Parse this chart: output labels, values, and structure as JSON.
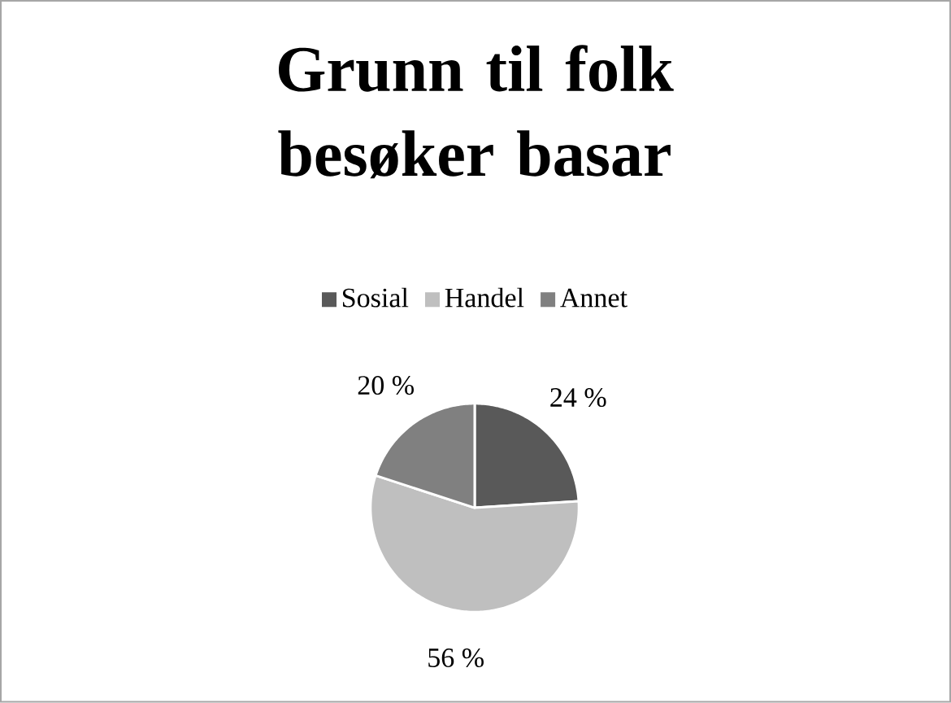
{
  "chart_data": {
    "type": "pie",
    "title": "Grunn til folk besøker basar",
    "categories": [
      "Sosial",
      "Handel",
      "Annet"
    ],
    "values": [
      24,
      56,
      20
    ],
    "colors": [
      "#595959",
      "#bfbfbf",
      "#808080"
    ],
    "value_labels": [
      "24 %",
      "56 %",
      "20 %"
    ],
    "legend": "top"
  }
}
